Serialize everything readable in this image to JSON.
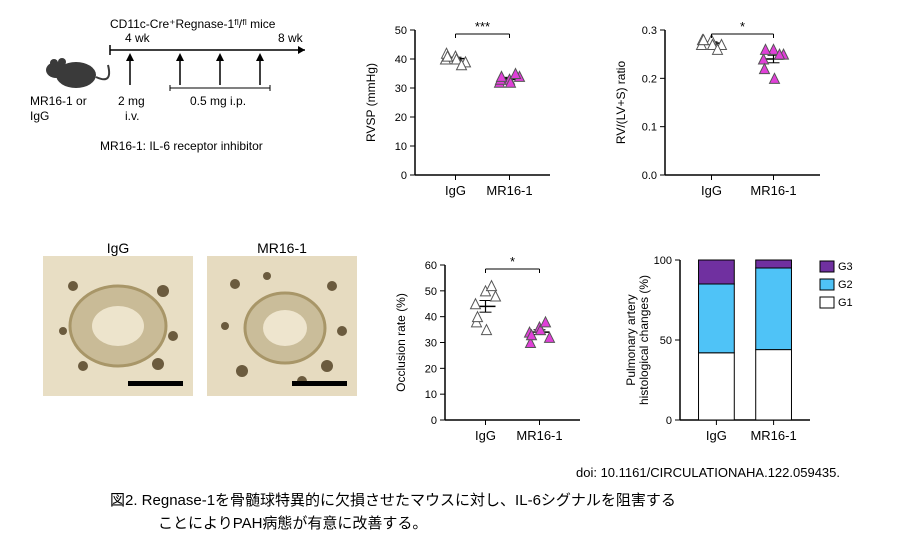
{
  "schematic": {
    "title": "CD11c-Cre⁺Regnase-1ᶠˡ/ᶠˡ mice",
    "treatment_label": "MR16-1 or\nIgG",
    "time_4wk": "4 wk",
    "time_8wk": "8 wk",
    "dose1": "2 mg\ni.v.",
    "dose2": "0.5 mg  i.p.",
    "note": "MR16-1: IL-6 receptor inhibitor",
    "mouse_color": "#3a3a3a",
    "arrow_color": "#000000"
  },
  "rvsp_chart": {
    "type": "scatter",
    "ylabel": "RVSP (mmHg)",
    "ylim": [
      0,
      50
    ],
    "ytick_step": 10,
    "xlabels": [
      "IgG",
      "MR16-1"
    ],
    "sig": "***",
    "groups": [
      {
        "x": 0,
        "values": [
          40,
          41,
          39,
          42,
          40,
          38,
          41
        ],
        "color": "#ffffff",
        "stroke": "#555555"
      },
      {
        "x": 1,
        "values": [
          32,
          33,
          34,
          33,
          32,
          35,
          34
        ],
        "color": "#e040d8",
        "stroke": "#555555"
      }
    ],
    "axis_color": "#000000"
  },
  "rvratio_chart": {
    "type": "scatter",
    "ylabel": "RV/(LV+S) ratio",
    "ylim": [
      0.0,
      0.3
    ],
    "ytick_step": 0.1,
    "xlabels": [
      "IgG",
      "MR16-1"
    ],
    "sig": "*",
    "groups": [
      {
        "x": 0,
        "values": [
          0.27,
          0.28,
          0.27,
          0.28,
          0.27,
          0.26,
          0.28
        ],
        "color": "#ffffff",
        "stroke": "#555555"
      },
      {
        "x": 1,
        "values": [
          0.24,
          0.26,
          0.25,
          0.22,
          0.2,
          0.25,
          0.26
        ],
        "color": "#e040d8",
        "stroke": "#555555"
      }
    ],
    "axis_color": "#000000"
  },
  "occlusion_chart": {
    "type": "scatter",
    "ylabel": "Occlusion rate (%)",
    "ylim": [
      0,
      60
    ],
    "ytick_step": 10,
    "xlabels": [
      "IgG",
      "MR16-1"
    ],
    "sig": "*",
    "groups": [
      {
        "x": 0,
        "values": [
          45,
          50,
          48,
          38,
          35,
          52,
          40
        ],
        "color": "#ffffff",
        "stroke": "#555555"
      },
      {
        "x": 1,
        "values": [
          34,
          36,
          32,
          30,
          35,
          38,
          33
        ],
        "color": "#e040d8",
        "stroke": "#555555"
      }
    ],
    "axis_color": "#000000"
  },
  "stacked_chart": {
    "type": "stacked-bar",
    "ylabel": "Pulmonary artery\nhistological changes (%)",
    "ylim": [
      0,
      100
    ],
    "ytick_step": 50,
    "xlabels": [
      "IgG",
      "MR16-1"
    ],
    "legend": [
      {
        "label": "G3",
        "color": "#7030a0"
      },
      {
        "label": "G2",
        "color": "#4fc3f7"
      },
      {
        "label": "G1",
        "color": "#ffffff"
      }
    ],
    "bars": [
      {
        "x": "IgG",
        "G1": 42,
        "G2": 43,
        "G3": 15
      },
      {
        "x": "MR16-1",
        "G1": 44,
        "G2": 51,
        "G3": 5
      }
    ],
    "bar_width": 0.55,
    "axis_color": "#000000",
    "stroke": "#000000"
  },
  "histology": {
    "label_igg": "IgG",
    "label_mr16": "MR16-1",
    "bg1": "#d9ccae",
    "bg2": "#d6c9a8",
    "nuclei": "#6b5b3e",
    "vessel": "#b5a57c",
    "scalebar_color": "#000000"
  },
  "doi": "doi: 10.1161/CIRCULATIONAHA.122.059435.",
  "caption_line1": "図2.  Regnase-1を骨髄球特異的に欠損させたマウスに対し、IL-6シグナルを阻害する",
  "caption_line2": "ことによりPAH病態が有意に改善する。"
}
